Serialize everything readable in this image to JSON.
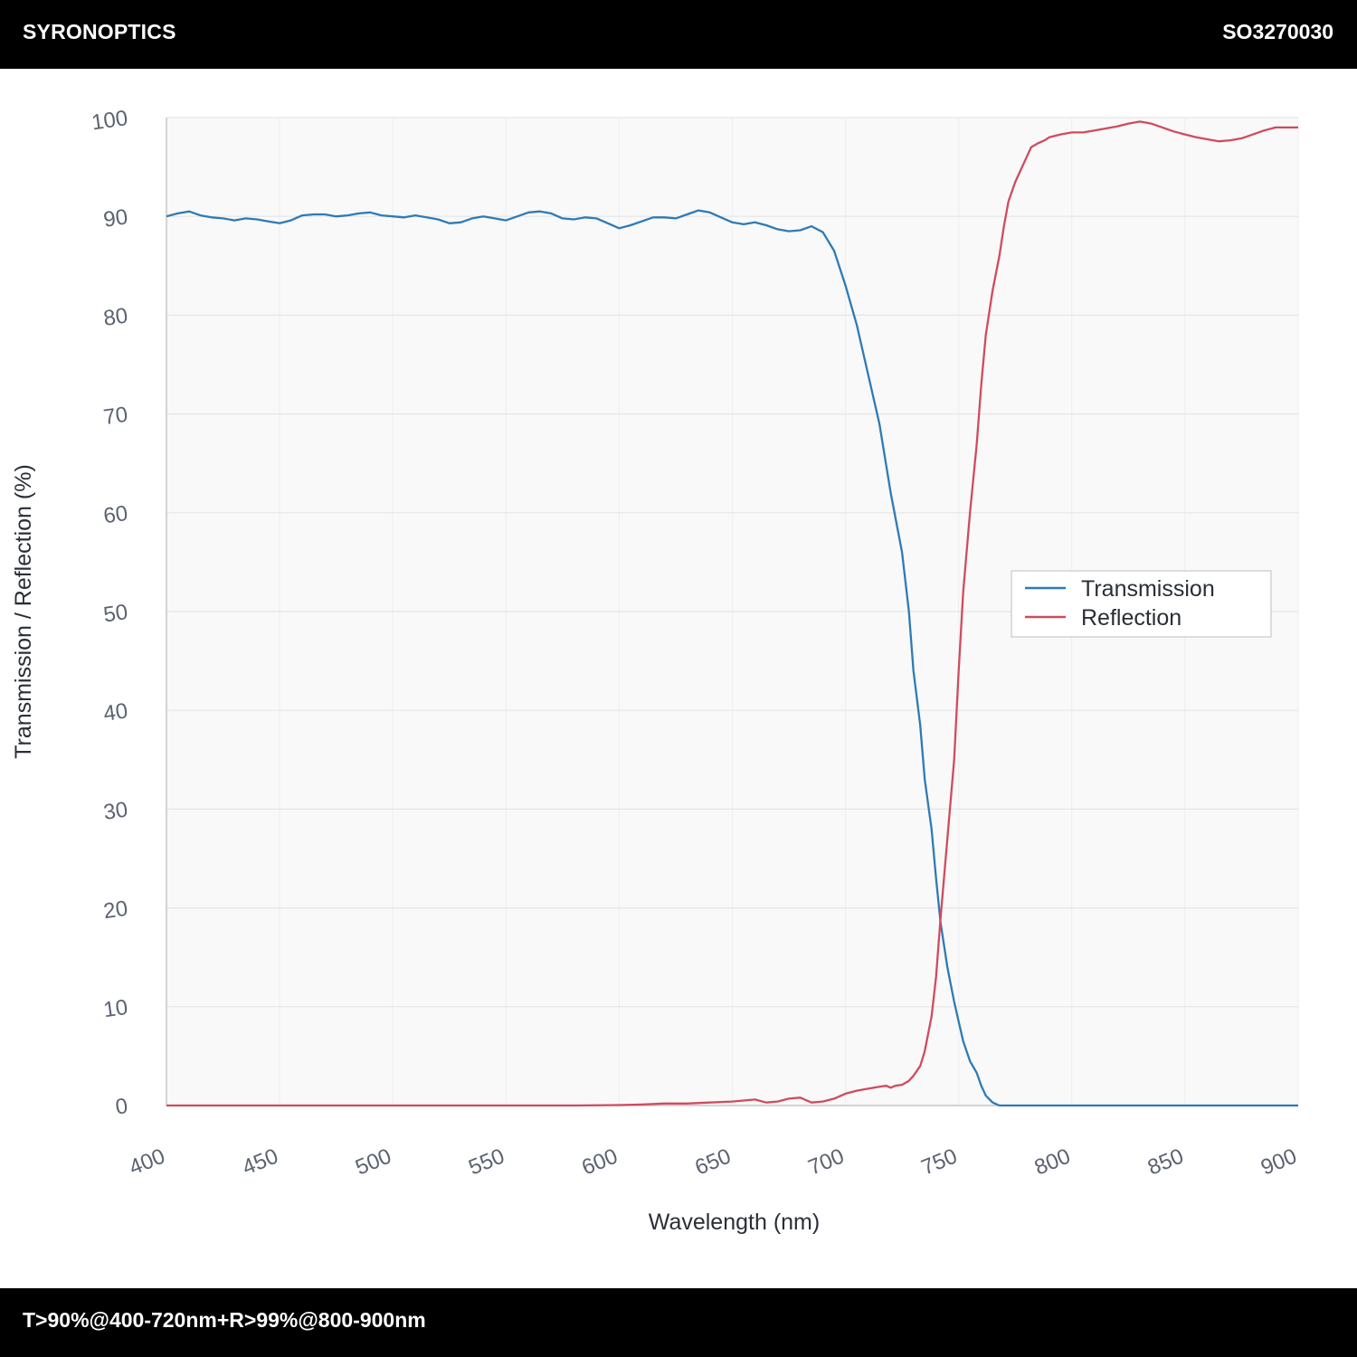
{
  "header": {
    "brand": "SYRONOPTICS",
    "part_number": "SO3270030"
  },
  "footer": {
    "spec": "T>90%@400-720nm+R>99%@800-900nm"
  },
  "colors": {
    "transmission": "#2f7ab5",
    "reflection": "#d04b5f",
    "plot_bg": "#f9f9f9",
    "grid": "#e6e6e6"
  },
  "chart_data": {
    "type": "line",
    "xlabel": "Wavelength (nm)",
    "ylabel": "Transmission / Reflection (%)",
    "xlim": [
      400,
      900
    ],
    "ylim": [
      0,
      100
    ],
    "xticks": [
      "400",
      "450",
      "500",
      "550",
      "600",
      "650",
      "700",
      "750",
      "800",
      "850",
      "900"
    ],
    "yticks": [
      "0",
      "10",
      "20",
      "30",
      "40",
      "50",
      "60",
      "70",
      "80",
      "90",
      "100"
    ],
    "grid": true,
    "legend_position": "right",
    "series": [
      {
        "name": "Transmission",
        "color": "#2f7ab5",
        "x": [
          400,
          405,
          410,
          415,
          420,
          425,
          430,
          435,
          440,
          445,
          450,
          455,
          460,
          465,
          470,
          475,
          480,
          485,
          490,
          495,
          500,
          505,
          510,
          515,
          520,
          525,
          530,
          535,
          540,
          545,
          550,
          555,
          560,
          565,
          570,
          575,
          580,
          585,
          590,
          595,
          600,
          605,
          610,
          615,
          620,
          625,
          630,
          635,
          640,
          645,
          650,
          655,
          660,
          665,
          670,
          675,
          680,
          685,
          690,
          695,
          700,
          705,
          710,
          715,
          720,
          725,
          728,
          730,
          733,
          735,
          738,
          740,
          742,
          745,
          748,
          750,
          752,
          755,
          758,
          760,
          762,
          765,
          768,
          770,
          772,
          775,
          778,
          780,
          782,
          785,
          788,
          790,
          792,
          795,
          798,
          800,
          805,
          810,
          820,
          830,
          840,
          850,
          860,
          870,
          880,
          890,
          900
        ],
        "y": [
          90.0,
          90.3,
          90.5,
          90.1,
          89.9,
          89.8,
          89.6,
          89.8,
          89.7,
          89.5,
          89.3,
          89.6,
          90.1,
          90.2,
          90.2,
          90.0,
          90.1,
          90.3,
          90.4,
          90.1,
          90.0,
          89.9,
          90.1,
          89.9,
          89.7,
          89.3,
          89.4,
          89.8,
          90.0,
          89.8,
          89.6,
          90.0,
          90.4,
          90.5,
          90.3,
          89.8,
          89.7,
          89.9,
          89.8,
          89.3,
          88.8,
          89.1,
          89.5,
          89.9,
          89.9,
          89.8,
          90.2,
          90.6,
          90.4,
          89.9,
          89.4,
          89.2,
          89.4,
          89.1,
          88.7,
          88.5,
          88.6,
          89.0,
          88.4,
          86.5,
          83.0,
          79.0,
          74.0,
          69.0,
          62.0,
          56.0,
          50.0,
          44.0,
          38.5,
          33.0,
          28.0,
          23.0,
          18.5,
          14.0,
          10.5,
          8.5,
          6.5,
          4.5,
          3.3,
          2.0,
          1.0,
          0.3,
          0.0,
          0.0,
          0.0,
          0.0,
          0.0,
          0.0,
          0.0,
          0.0,
          0.0,
          0.0,
          0.0,
          0.0,
          0.0,
          0.0,
          0.0,
          0.0,
          0.0,
          0.0,
          0.0,
          0.0,
          0.0,
          0.0,
          0.0,
          0.0,
          0.0
        ]
      },
      {
        "name": "Reflection",
        "color": "#d04b5f",
        "x": [
          400,
          450,
          500,
          550,
          580,
          600,
          610,
          620,
          630,
          640,
          650,
          655,
          660,
          665,
          670,
          675,
          680,
          685,
          690,
          695,
          700,
          705,
          710,
          715,
          718,
          720,
          722,
          725,
          728,
          730,
          733,
          735,
          738,
          740,
          742,
          745,
          748,
          750,
          752,
          755,
          758,
          760,
          762,
          765,
          768,
          770,
          772,
          775,
          778,
          780,
          782,
          785,
          788,
          790,
          795,
          800,
          805,
          810,
          815,
          820,
          825,
          830,
          835,
          840,
          845,
          850,
          855,
          860,
          865,
          870,
          875,
          880,
          885,
          890,
          895,
          900
        ],
        "y": [
          0.0,
          0.0,
          0.0,
          0.0,
          0.0,
          0.05,
          0.1,
          0.2,
          0.2,
          0.3,
          0.4,
          0.5,
          0.6,
          0.3,
          0.4,
          0.7,
          0.8,
          0.3,
          0.4,
          0.7,
          1.2,
          1.5,
          1.7,
          1.9,
          2.0,
          1.8,
          2.0,
          2.1,
          2.5,
          3.0,
          4.0,
          5.5,
          9.0,
          13.0,
          19.0,
          27.0,
          35.0,
          44.0,
          52.0,
          60.0,
          67.0,
          73.0,
          78.0,
          82.5,
          86.0,
          89.0,
          91.5,
          93.5,
          95.0,
          96.0,
          97.0,
          97.4,
          97.7,
          98.0,
          98.3,
          98.5,
          98.5,
          98.7,
          98.9,
          99.1,
          99.4,
          99.6,
          99.4,
          99.0,
          98.6,
          98.3,
          98.0,
          97.8,
          97.6,
          97.7,
          97.9,
          98.3,
          98.7,
          99.0,
          99.0,
          99.0
        ]
      }
    ]
  }
}
